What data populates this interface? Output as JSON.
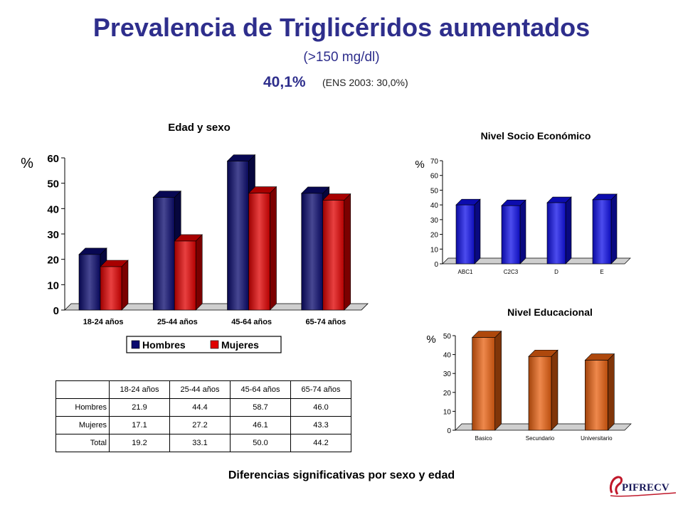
{
  "title": "Prevalencia de Triglicéridos aumentados",
  "subtitle": "(>150 mg/dl)",
  "headline_value": "40,1%",
  "headline_note": "(ENS 2003: 30,0%)",
  "footnote": "Diferencias significativas por sexo y edad",
  "logo_text": "PIFRECV",
  "colors": {
    "title": "#2e2e8c",
    "hombres": "#0a0a6e",
    "mujeres": "#e00000",
    "nse": "#1010e8",
    "educ": "#e86010"
  },
  "table": {
    "columns": [
      "18-24 años",
      "25-44 años",
      "45-64 años",
      "65-74 años"
    ],
    "rows": [
      {
        "label": "Hombres",
        "values": [
          "21.9",
          "44.4",
          "58.7",
          "46.0"
        ]
      },
      {
        "label": "Mujeres",
        "values": [
          "17.1",
          "27.2",
          "46.1",
          "43.3"
        ]
      },
      {
        "label": "Total",
        "values": [
          "19.2",
          "33.1",
          "50.0",
          "44.2"
        ]
      }
    ]
  },
  "chart_data": [
    {
      "type": "bar",
      "title": "Edad y sexo",
      "ylabel": "%",
      "categories": [
        "18-24 años",
        "25-44 años",
        "45-64 años",
        "65-74 años"
      ],
      "series": [
        {
          "name": "Hombres",
          "values": [
            21.9,
            44.4,
            58.7,
            46.0
          ]
        },
        {
          "name": "Mujeres",
          "values": [
            17.1,
            27.2,
            46.1,
            43.3
          ]
        }
      ],
      "ylim": [
        0,
        60
      ],
      "yticks": [
        0,
        10,
        20,
        30,
        40,
        50,
        60
      ],
      "legend": "bottom"
    },
    {
      "type": "bar",
      "title": "Nivel Socio Económico",
      "ylabel": "%",
      "categories": [
        "ABC1",
        "C2C3",
        "D",
        "E"
      ],
      "values": [
        40,
        39.5,
        41.5,
        43.5
      ],
      "ylim": [
        0,
        70
      ],
      "yticks": [
        0,
        10,
        20,
        30,
        40,
        50,
        60,
        70
      ]
    },
    {
      "type": "bar",
      "title": "Nivel Educacional",
      "ylabel": "%",
      "categories": [
        "Basico",
        "Secundario",
        "Universitario"
      ],
      "values": [
        49,
        39,
        37
      ],
      "ylim": [
        0,
        50
      ],
      "yticks": [
        0,
        10,
        20,
        30,
        40,
        50
      ]
    }
  ]
}
